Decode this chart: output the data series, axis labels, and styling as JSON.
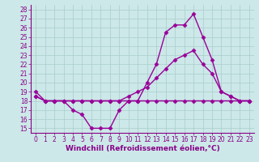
{
  "bg_color": "#cce8e8",
  "grid_color": "#aacccc",
  "line_color": "#990099",
  "marker": "D",
  "markersize": 2.5,
  "linewidth": 1.0,
  "xlabel": "Windchill (Refroidissement éolien,°C)",
  "xlabel_color": "#880088",
  "xlabel_fontsize": 6.5,
  "tick_color": "#880088",
  "tick_fontsize": 5.5,
  "xlim": [
    -0.5,
    23.5
  ],
  "ylim": [
    14.5,
    28.5
  ],
  "xticks": [
    0,
    1,
    2,
    3,
    4,
    5,
    6,
    7,
    8,
    9,
    10,
    11,
    12,
    13,
    14,
    15,
    16,
    17,
    18,
    19,
    20,
    21,
    22,
    23
  ],
  "yticks": [
    15,
    16,
    17,
    18,
    19,
    20,
    21,
    22,
    23,
    24,
    25,
    26,
    27,
    28
  ],
  "line1_x": [
    0,
    1,
    2,
    3,
    4,
    5,
    6,
    7,
    8,
    9,
    10,
    11,
    12,
    13,
    14,
    15,
    16,
    17,
    18,
    19,
    20,
    21,
    22,
    23
  ],
  "line1_y": [
    19,
    18,
    18,
    18,
    17,
    16.5,
    15,
    15,
    15,
    17,
    18,
    18,
    20,
    22,
    25.5,
    26.3,
    26.3,
    27.5,
    25,
    22.5,
    19,
    18.5,
    18,
    18
  ],
  "line2_x": [
    0,
    1,
    2,
    3,
    4,
    5,
    6,
    7,
    8,
    9,
    10,
    11,
    12,
    13,
    14,
    15,
    16,
    17,
    18,
    19,
    20,
    21,
    22,
    23
  ],
  "line2_y": [
    18.5,
    18,
    18,
    18,
    18,
    18,
    18,
    18,
    18,
    18,
    18,
    18,
    18,
    18,
    18,
    18,
    18,
    18,
    18,
    18,
    18,
    18,
    18,
    18
  ],
  "line3_x": [
    0,
    1,
    2,
    3,
    4,
    5,
    6,
    7,
    8,
    9,
    10,
    11,
    12,
    13,
    14,
    15,
    16,
    17,
    18,
    19,
    20,
    21,
    22,
    23
  ],
  "line3_y": [
    18.5,
    18,
    18,
    18,
    18,
    18,
    18,
    18,
    18,
    18,
    18.5,
    19,
    19.5,
    20.5,
    21.5,
    22.5,
    23,
    23.5,
    22,
    21,
    19,
    18.5,
    18,
    18
  ]
}
